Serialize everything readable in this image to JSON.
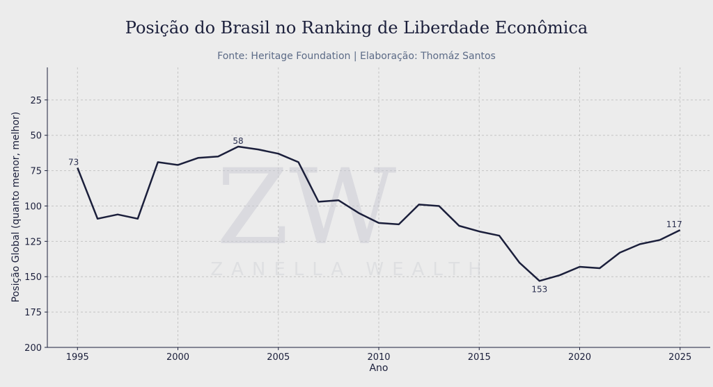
{
  "chart_data": {
    "type": "line",
    "title": "Posição do Brasil no Ranking de Liberdade Econômica",
    "subtitle": "Fonte: Heritage Foundation | Elaboração: Thomáz Santos",
    "xlabel": "Ano",
    "ylabel": "Posição Global (quanto menor, melhor)",
    "xlim": [
      1993.5,
      2026.5
    ],
    "ylim": [
      200,
      2
    ],
    "y_inverted": true,
    "grid": true,
    "x_ticks": [
      "1995",
      "2000",
      "2005",
      "2010",
      "2015",
      "2020",
      "2025"
    ],
    "y_ticks": [
      "25",
      "50",
      "75",
      "100",
      "125",
      "150",
      "175",
      "200"
    ],
    "x": [
      1995,
      1996,
      1997,
      1998,
      1999,
      2000,
      2001,
      2002,
      2003,
      2004,
      2005,
      2006,
      2007,
      2008,
      2009,
      2010,
      2011,
      2012,
      2013,
      2014,
      2015,
      2016,
      2017,
      2018,
      2019,
      2020,
      2021,
      2022,
      2023,
      2024,
      2025
    ],
    "y": [
      73,
      109,
      106,
      109,
      69,
      71,
      66,
      65,
      58,
      60,
      63,
      69,
      97,
      96,
      105,
      112,
      113,
      99,
      100,
      114,
      118,
      121,
      140,
      153,
      149,
      143,
      144,
      133,
      127,
      124,
      117
    ],
    "annotations": [
      {
        "x": 1995,
        "y": 73,
        "text": "73"
      },
      {
        "x": 2003,
        "y": 58,
        "text": "58"
      },
      {
        "x": 2018,
        "y": 153,
        "text": "153"
      },
      {
        "x": 2025,
        "y": 117,
        "text": "117"
      }
    ],
    "line_color": "#1b1f3b"
  },
  "watermark": {
    "monogram": "ZW",
    "text": "ZANELLA WEALTH"
  }
}
